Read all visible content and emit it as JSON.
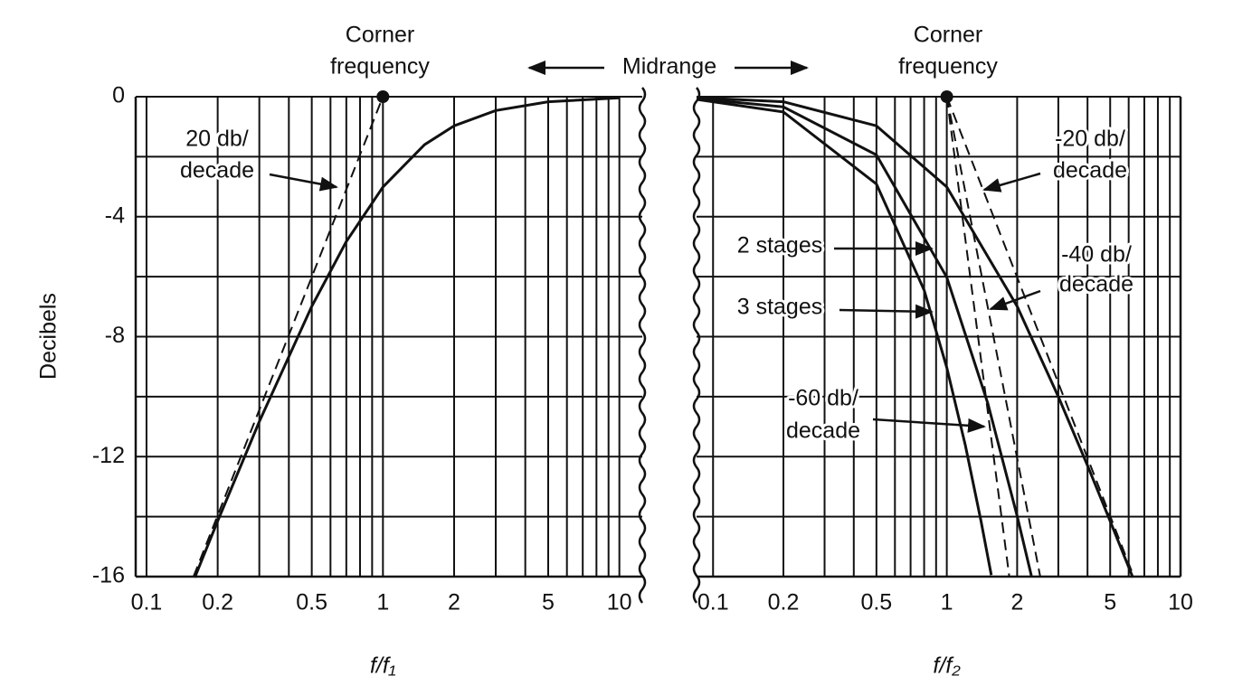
{
  "chart_data": [
    {
      "type": "line",
      "ylabel": "Decibels",
      "xlabel": "f/f₁",
      "log_x": true,
      "xlim": [
        0.09,
        12.5
      ],
      "ylim": [
        -16,
        0
      ],
      "xticks": [
        0.1,
        0.2,
        0.5,
        1,
        2,
        5,
        10
      ],
      "xgrid": [
        0.1,
        0.2,
        0.3,
        0.4,
        0.5,
        0.6,
        0.7,
        0.8,
        0.9,
        1,
        2,
        3,
        4,
        5,
        6,
        7,
        8,
        9,
        10
      ],
      "yticks": [
        0,
        -4,
        -8,
        -12,
        -16
      ],
      "ygrid": [
        -2,
        -6,
        -10,
        -14
      ],
      "series": [
        {
          "color": "#111",
          "dash": false,
          "x": [
            0.16,
            0.2,
            0.3,
            0.5,
            0.7,
            1,
            1.5,
            2,
            3,
            5,
            10
          ],
          "values": [
            -16.03,
            -14.15,
            -10.83,
            -6.99,
            -4.83,
            -3.01,
            -1.6,
            -0.97,
            -0.46,
            -0.17,
            -0.04
          ]
        },
        {
          "color": "#111",
          "dash": true,
          "x": [
            0.158,
            1
          ],
          "values": [
            -16,
            0
          ]
        },
        {
          "color": "#111",
          "dash": true,
          "x": [
            1,
            12.5
          ],
          "values": [
            0,
            0
          ]
        }
      ],
      "annotations": [
        {
          "lines": [
            "Corner",
            "frequency"
          ]
        },
        {
          "lines": [
            "20 db/",
            "decade"
          ]
        },
        {
          "lines": [
            "Midrange"
          ]
        }
      ]
    },
    {
      "type": "line",
      "xlabel": "f/f₂",
      "log_x": true,
      "xlim": [
        0.085,
        10
      ],
      "ylim": [
        -16,
        0
      ],
      "xticks": [
        0.1,
        0.2,
        0.5,
        1,
        2,
        5,
        10
      ],
      "xgrid": [
        0.1,
        0.2,
        0.3,
        0.4,
        0.5,
        0.6,
        0.7,
        0.8,
        0.9,
        1,
        2,
        3,
        4,
        5,
        6,
        7,
        8,
        9,
        10
      ],
      "ygrid": [
        0,
        -2,
        -4,
        -6,
        -8,
        -10,
        -12,
        -14,
        -16
      ],
      "series": [
        {
          "color": "#111",
          "dash": false,
          "x": [
            0.085,
            0.2,
            0.5,
            1,
            2,
            3,
            4,
            5,
            6.25
          ],
          "values": [
            -0.03,
            -0.17,
            -0.97,
            -3.01,
            -6.99,
            -10,
            -12.3,
            -14.15,
            -16.03
          ]
        },
        {
          "color": "#111",
          "dash": false,
          "x": [
            0.085,
            0.2,
            0.5,
            1,
            1.5,
            2,
            2.3
          ],
          "values": [
            -0.06,
            -0.34,
            -1.94,
            -6.02,
            -10.24,
            -13.98,
            -15.97
          ]
        },
        {
          "color": "#111",
          "dash": false,
          "x": [
            0.085,
            0.2,
            0.5,
            0.8,
            1,
            1.2,
            1.4,
            1.55
          ],
          "values": [
            -0.09,
            -0.51,
            -2.91,
            -6.45,
            -9.03,
            -11.62,
            -14.14,
            -15.95
          ]
        },
        {
          "color": "#111",
          "dash": true,
          "x": [
            0.085,
            1
          ],
          "values": [
            0,
            0
          ]
        },
        {
          "color": "#111",
          "dash": true,
          "x": [
            1,
            6.31
          ],
          "values": [
            0,
            -16
          ]
        },
        {
          "color": "#111",
          "dash": true,
          "x": [
            1,
            2.51
          ],
          "values": [
            0,
            -16
          ]
        },
        {
          "color": "#111",
          "dash": true,
          "x": [
            1,
            1.85
          ],
          "values": [
            0,
            -16
          ]
        }
      ],
      "annotations": [
        {
          "lines": [
            "Corner",
            "frequency"
          ]
        },
        {
          "lines": [
            "-20 db/",
            "decade"
          ]
        },
        {
          "lines": [
            "2 stages"
          ]
        },
        {
          "lines": [
            "-40 db/",
            "decade"
          ]
        },
        {
          "lines": [
            "3 stages"
          ]
        },
        {
          "lines": [
            "-60 db/",
            "decade"
          ]
        }
      ]
    }
  ]
}
